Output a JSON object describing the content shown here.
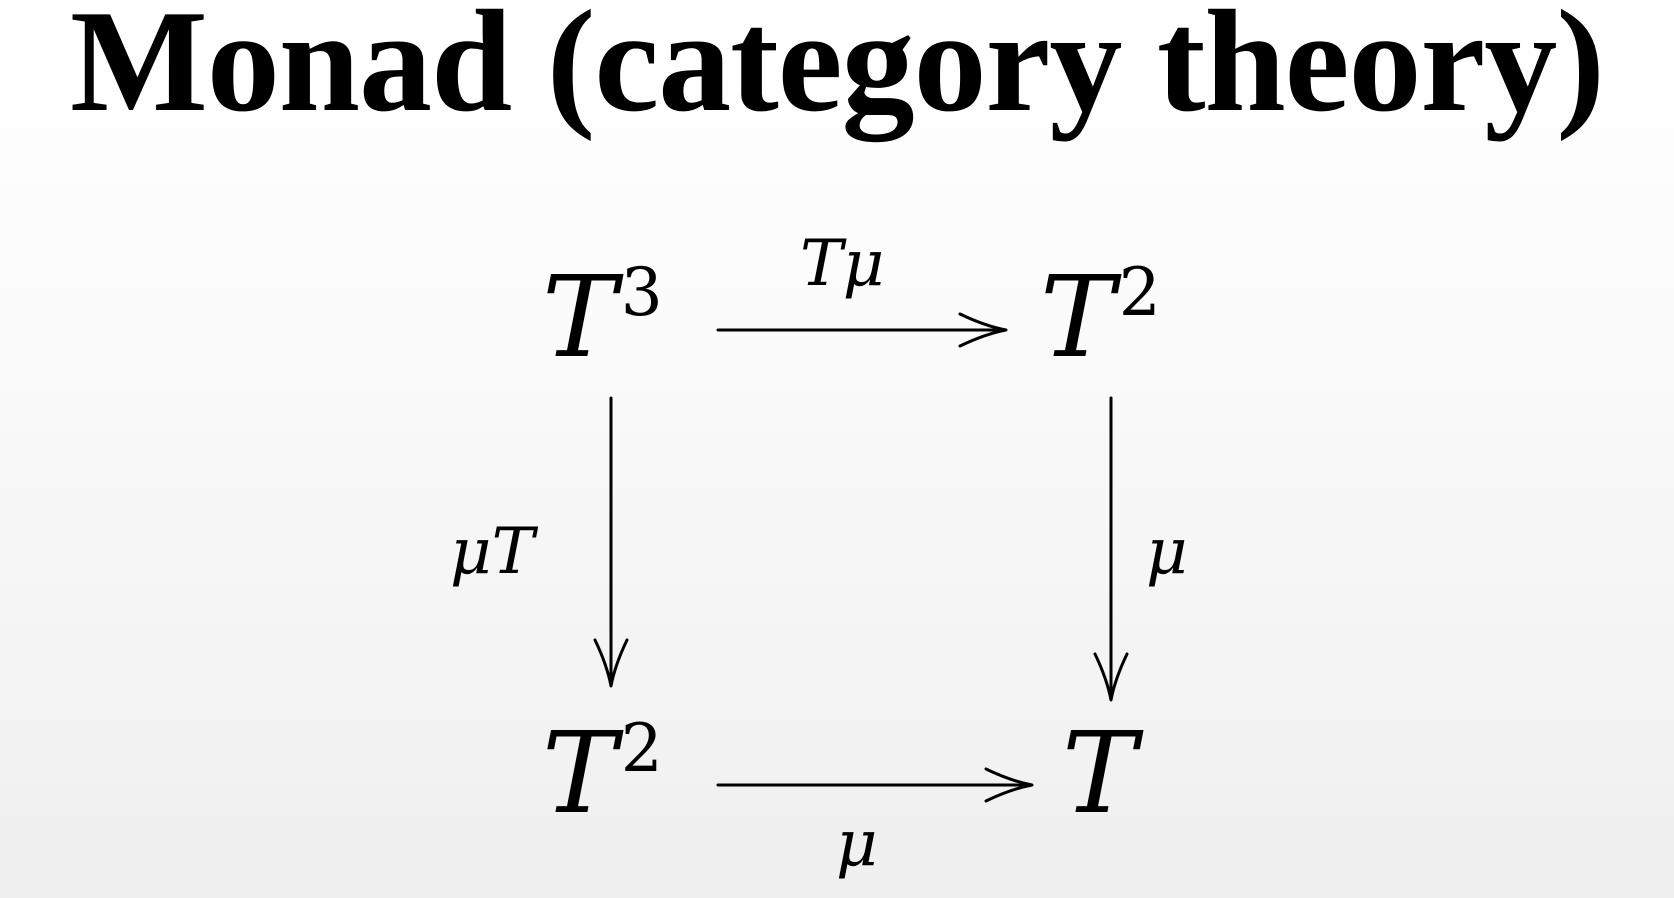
{
  "title": "Monad (category theory)",
  "diagram": {
    "objects": {
      "top_left": {
        "base": "T",
        "exponent": "3"
      },
      "top_right": {
        "base": "T",
        "exponent": "2"
      },
      "bottom_left": {
        "base": "T",
        "exponent": "2"
      },
      "bottom_right": {
        "base": "T",
        "exponent": ""
      }
    },
    "morphisms": {
      "top": "Tμ",
      "left": "μT",
      "right": "μ",
      "bottom": "μ"
    }
  }
}
